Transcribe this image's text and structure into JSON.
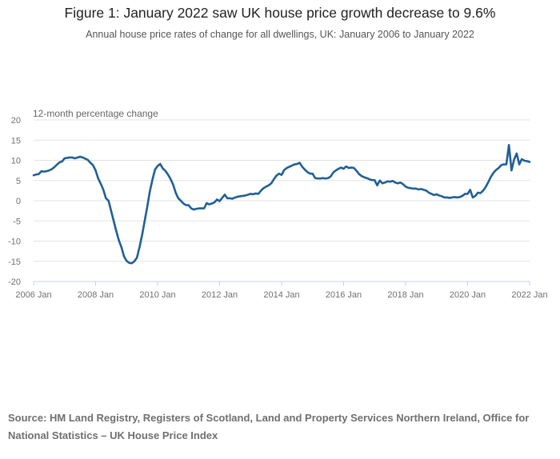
{
  "chart_data": {
    "type": "line",
    "title": "Figure 1: January 2022 saw UK house price growth decrease to 9.6%",
    "subtitle": "Annual house price rates of change for all dwellings, UK: January 2006 to January 2022",
    "ylabel": "12-month percentage change",
    "xlabel": "",
    "ylim": [
      -20,
      20
    ],
    "yticks": [
      20,
      15,
      10,
      5,
      0,
      -5,
      -10,
      -15,
      -20
    ],
    "xticks": [
      "2006 Jan",
      "2008 Jan",
      "2010 Jan",
      "2012 Jan",
      "2014 Jan",
      "2016 Jan",
      "2018 Jan",
      "2020 Jan",
      "2022 Jan"
    ],
    "x_start": "2006 Jan",
    "x_end": "2022 Jan",
    "frequency": "monthly",
    "grid": true,
    "color": "#206095",
    "values": [
      6.3,
      6.5,
      6.6,
      7.3,
      7.2,
      7.3,
      7.5,
      7.8,
      8.3,
      8.9,
      9.5,
      9.7,
      10.5,
      10.6,
      10.7,
      10.7,
      10.5,
      10.7,
      10.9,
      10.7,
      10.4,
      10.1,
      9.4,
      8.8,
      7.5,
      5.5,
      4.2,
      2.7,
      0.6,
      0.0,
      -2.5,
      -5.0,
      -7.5,
      -9.8,
      -11.5,
      -13.8,
      -14.9,
      -15.4,
      -15.5,
      -15.0,
      -14.1,
      -11.5,
      -8.5,
      -5.0,
      -1.5,
      2.3,
      5.2,
      7.7,
      8.6,
      9.1,
      8.0,
      7.4,
      6.5,
      5.4,
      4.0,
      2.0,
      0.6,
      0.0,
      -0.7,
      -1.1,
      -1.1,
      -1.9,
      -2.2,
      -2.0,
      -1.9,
      -1.9,
      -1.9,
      -0.6,
      -0.9,
      -0.7,
      -0.4,
      0.3,
      -0.1,
      0.7,
      1.5,
      0.6,
      0.6,
      0.5,
      0.8,
      1.0,
      1.1,
      1.2,
      1.3,
      1.5,
      1.7,
      1.6,
      1.8,
      1.7,
      2.5,
      3.1,
      3.5,
      3.8,
      4.3,
      5.3,
      6.2,
      6.7,
      6.4,
      7.6,
      8.1,
      8.4,
      8.7,
      9.0,
      9.1,
      9.4,
      8.4,
      7.7,
      7.1,
      6.7,
      6.7,
      5.6,
      5.5,
      5.5,
      5.6,
      5.5,
      5.6,
      6.0,
      7.0,
      7.5,
      7.9,
      8.2,
      7.9,
      8.5,
      8.1,
      8.2,
      8.1,
      7.4,
      6.6,
      6.1,
      5.8,
      5.6,
      5.3,
      5.1,
      5.1,
      3.8,
      5.0,
      4.3,
      4.5,
      4.8,
      4.7,
      4.9,
      4.5,
      4.3,
      4.5,
      4.1,
      3.5,
      3.2,
      3.1,
      3.0,
      3.0,
      2.8,
      2.9,
      2.7,
      2.5,
      2.0,
      1.7,
      1.4,
      1.6,
      1.3,
      1.1,
      0.8,
      0.8,
      0.7,
      0.8,
      0.9,
      0.8,
      0.9,
      1.2,
      1.7,
      1.7,
      2.7,
      0.8,
      1.2,
      2.0,
      1.9,
      2.5,
      3.4,
      4.6,
      5.9,
      6.9,
      7.6,
      8.1,
      8.8,
      9.0,
      9.0,
      13.8,
      7.5,
      10.2,
      11.7,
      9.0,
      10.3,
      9.9,
      9.8,
      9.6
    ],
    "source": "Source: HM Land Registry, Registers of Scotland, Land and Property Services Northern Ireland, Office for National Statistics – UK House Price Index"
  }
}
